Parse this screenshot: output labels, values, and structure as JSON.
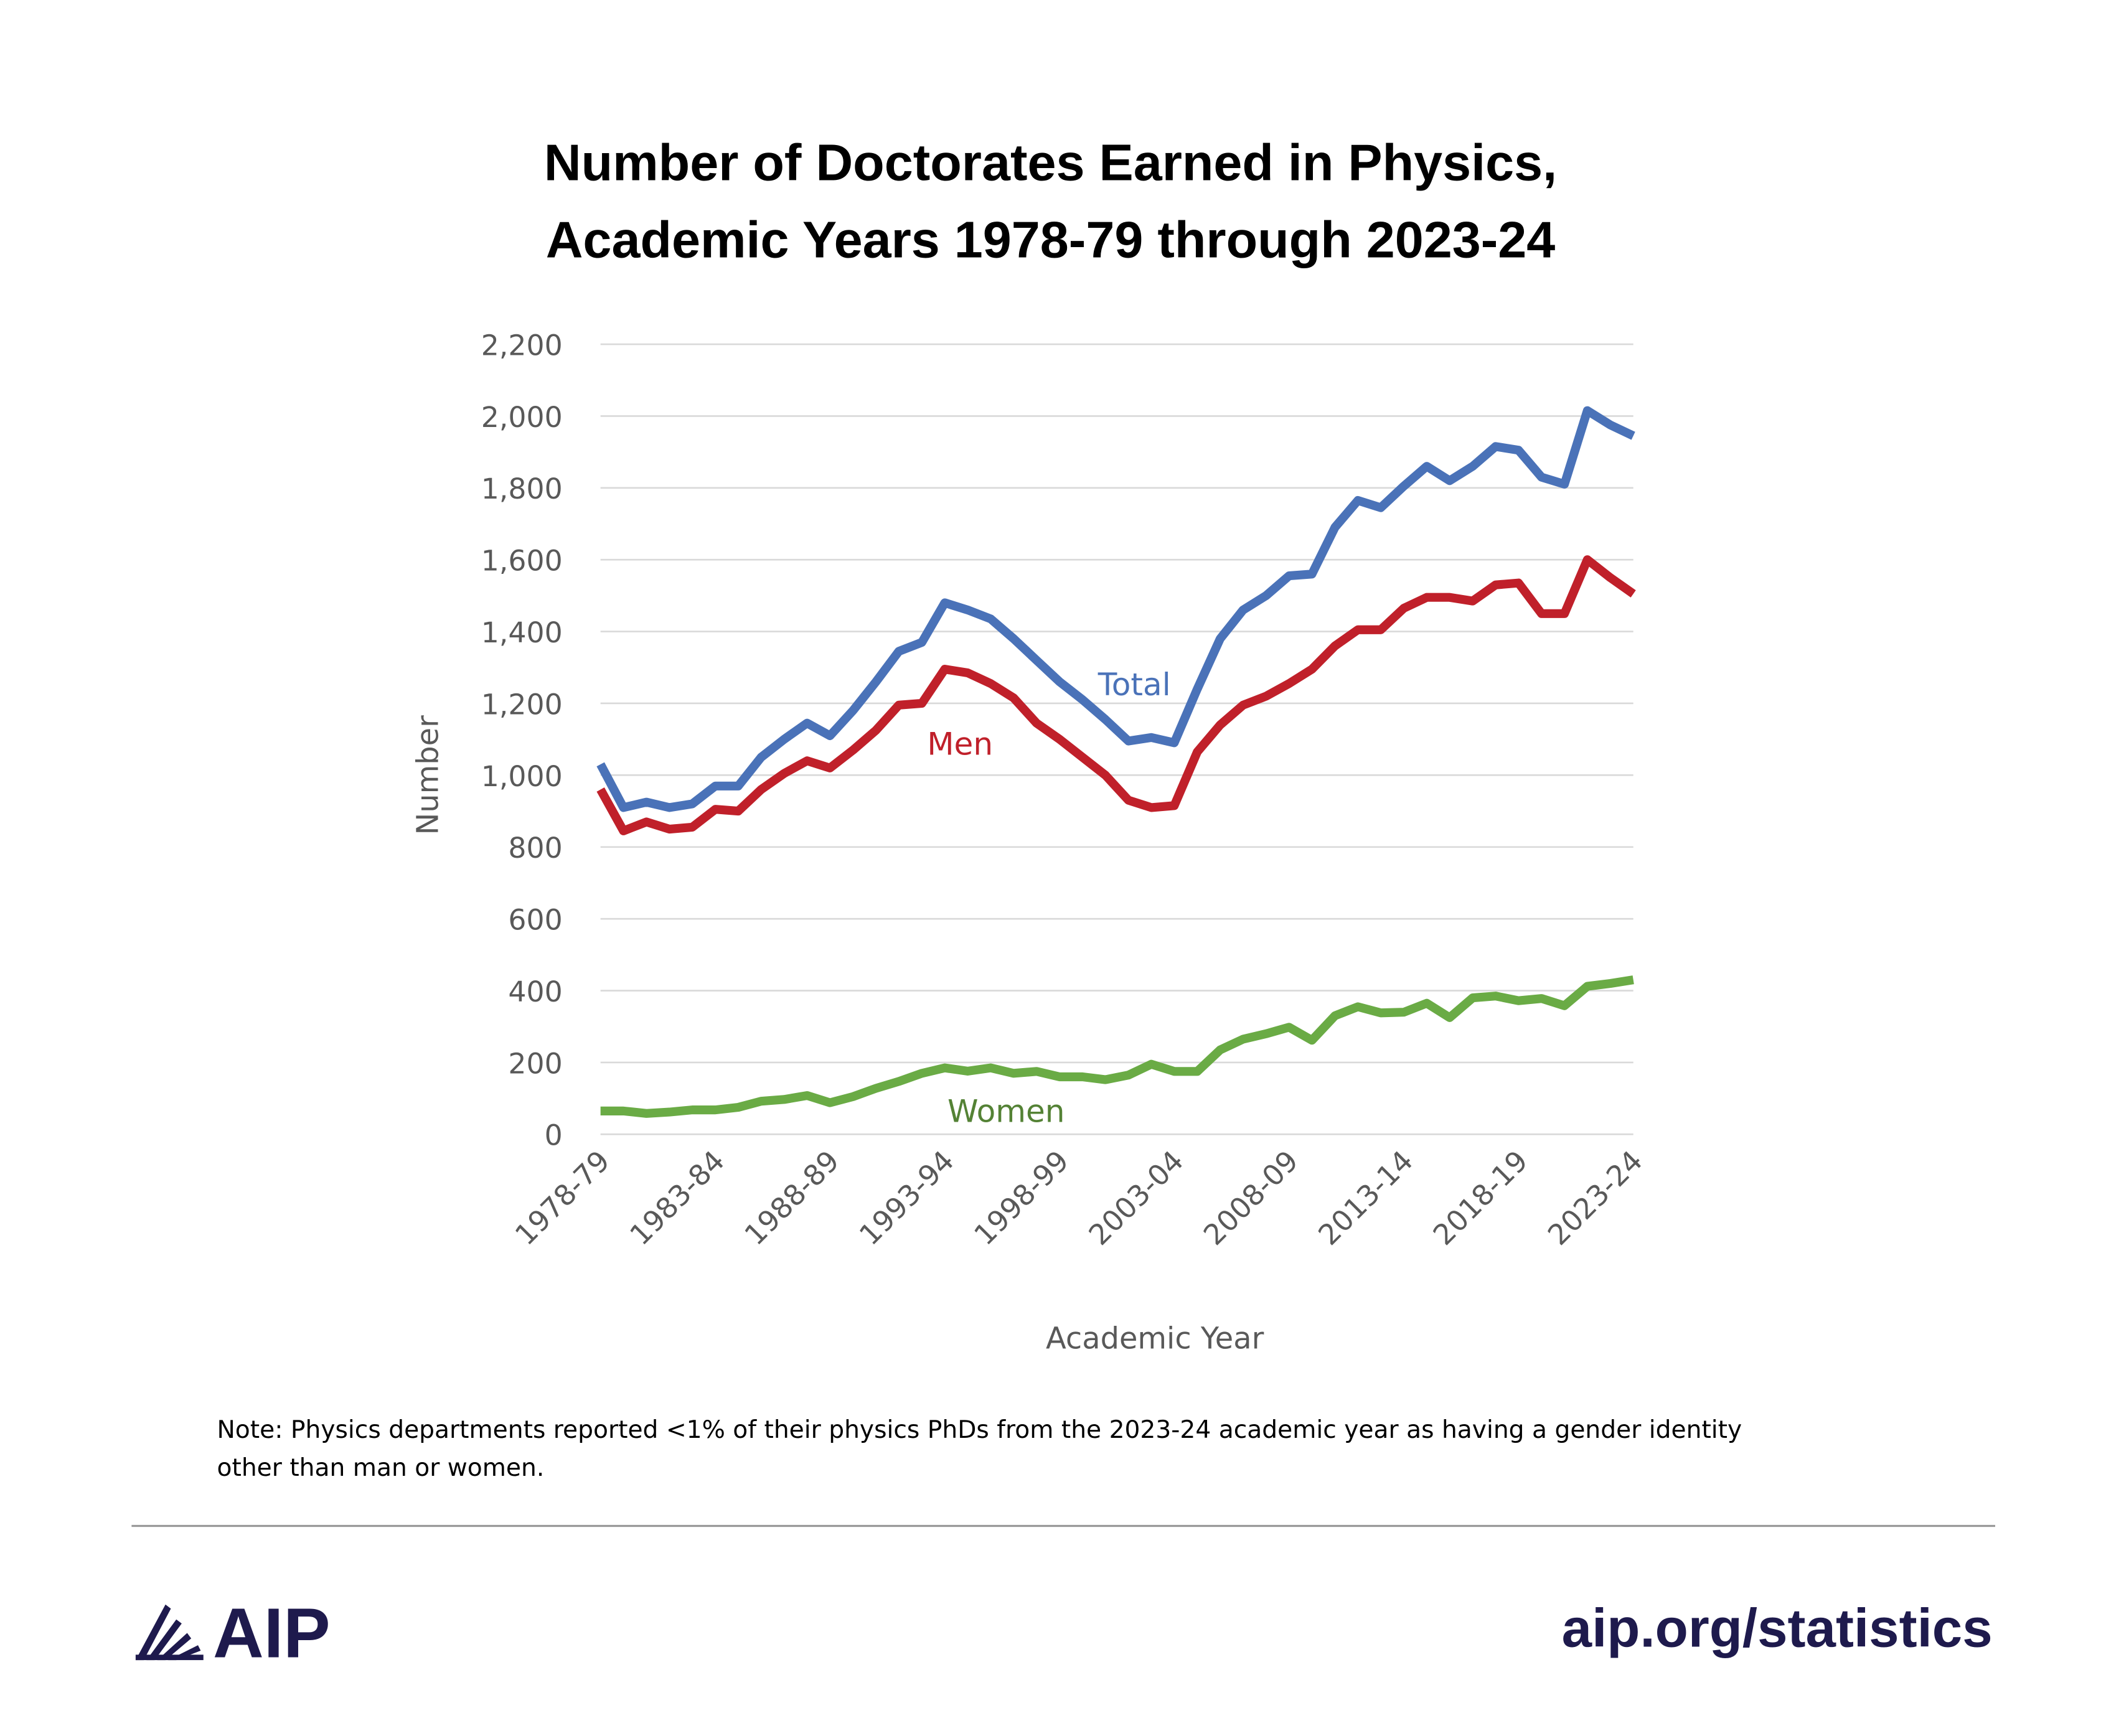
{
  "chart_data": {
    "type": "line",
    "title": "Number of Doctorates Earned in Physics,",
    "subtitle": "Academic Years 1978-79 through 2023-24",
    "xlabel": "Academic Year",
    "ylabel": "Number",
    "ylim": [
      0,
      2200
    ],
    "yticks": [
      "0",
      "200",
      "400",
      "600",
      "800",
      "1,000",
      "1,200",
      "1,400",
      "1,600",
      "1,800",
      "2,000",
      "2,200"
    ],
    "ytick_values": [
      0,
      200,
      400,
      600,
      800,
      1000,
      1200,
      1400,
      1600,
      1800,
      2000,
      2200
    ],
    "grid": true,
    "x": [
      "1978-79",
      "1979-80",
      "1980-81",
      "1981-82",
      "1982-83",
      "1983-84",
      "1984-85",
      "1985-86",
      "1986-87",
      "1987-88",
      "1988-89",
      "1989-90",
      "1990-91",
      "1991-92",
      "1992-93",
      "1993-94",
      "1994-95",
      "1995-96",
      "1996-97",
      "1997-98",
      "1998-99",
      "1999-00",
      "2000-01",
      "2001-02",
      "2002-03",
      "2003-04",
      "2004-05",
      "2005-06",
      "2006-07",
      "2007-08",
      "2008-09",
      "2009-10",
      "2010-11",
      "2011-12",
      "2012-13",
      "2013-14",
      "2014-15",
      "2015-16",
      "2016-17",
      "2017-18",
      "2018-19",
      "2019-20",
      "2020-21",
      "2021-22",
      "2022-23",
      "2023-24"
    ],
    "xtick_labels": [
      "1978-79",
      "1983-84",
      "1988-89",
      "1993-94",
      "1998-99",
      "2003-04",
      "2008-09",
      "2013-14",
      "2018-19",
      "2023-24"
    ],
    "series": [
      {
        "name": "Total",
        "color": "#4a72b8",
        "values": [
          1030,
          910,
          925,
          910,
          920,
          970,
          970,
          1050,
          1100,
          1145,
          1110,
          1180,
          1260,
          1345,
          1370,
          1480,
          1460,
          1435,
          1380,
          1320,
          1260,
          1210,
          1155,
          1095,
          1105,
          1090,
          1240,
          1380,
          1460,
          1500,
          1555,
          1560,
          1690,
          1765,
          1745,
          1805,
          1860,
          1820,
          1860,
          1915,
          1905,
          1830,
          1810,
          2015,
          1975,
          1945
        ]
      },
      {
        "name": "Men",
        "color": "#c0202a",
        "values": [
          960,
          845,
          870,
          850,
          855,
          905,
          900,
          960,
          1005,
          1040,
          1020,
          1070,
          1125,
          1195,
          1200,
          1295,
          1285,
          1255,
          1215,
          1145,
          1100,
          1050,
          1000,
          930,
          910,
          915,
          1065,
          1140,
          1195,
          1220,
          1255,
          1295,
          1360,
          1405,
          1405,
          1465,
          1495,
          1495,
          1485,
          1530,
          1535,
          1450,
          1450,
          1600,
          1550,
          1505
        ]
      },
      {
        "name": "Women",
        "color": "#6aab45",
        "values": [
          65,
          65,
          58,
          62,
          68,
          68,
          75,
          92,
          97,
          108,
          88,
          105,
          128,
          147,
          170,
          185,
          176,
          185,
          170,
          175,
          160,
          160,
          152,
          165,
          195,
          175,
          175,
          235,
          265,
          280,
          298,
          262,
          330,
          355,
          338,
          340,
          365,
          325,
          380,
          385,
          372,
          378,
          358,
          412,
          420,
          430
        ]
      }
    ]
  },
  "note": {
    "line1": "Note: Physics departments reported <1% of their physics PhDs from the 2023-24 academic year as having a gender identity",
    "line2": "other than man or women."
  },
  "footer": {
    "logo_text": "AIP",
    "url": "aip.org/statistics",
    "brand_color": "#1e1a4d"
  }
}
